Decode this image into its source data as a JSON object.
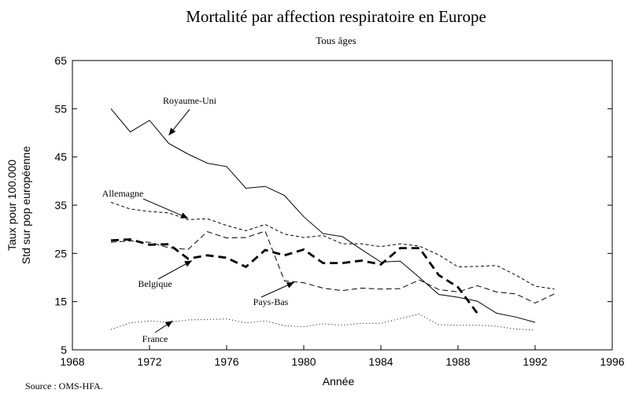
{
  "chart_data": {
    "type": "line",
    "title": "Mortalité par affection respiratoire en Europe",
    "subtitle": "Tous âges",
    "xlabel": "Année",
    "ylabel_line1": "Taux pour 100.000",
    "ylabel_line2": "Std sur pop européenne",
    "source": "Source : OMS-HFA.",
    "xlim": [
      1968,
      1996
    ],
    "ylim": [
      5,
      65
    ],
    "x_ticks": [
      1968,
      1972,
      1976,
      1980,
      1984,
      1988,
      1992,
      1996
    ],
    "y_ticks": [
      5,
      15,
      25,
      35,
      45,
      55,
      65
    ],
    "grid": false,
    "series": [
      {
        "name": "Royaume-Uni",
        "style": "solid",
        "x": [
          1970,
          1971,
          1972,
          1973,
          1974,
          1975,
          1976,
          1977,
          1978,
          1979,
          1980,
          1981,
          1982,
          1983,
          1984,
          1985,
          1986,
          1987,
          1988,
          1989,
          1990,
          1991,
          1992
        ],
        "values": [
          55.0,
          50.2,
          52.6,
          47.8,
          45.6,
          43.7,
          43.0,
          38.5,
          38.9,
          37.0,
          32.6,
          29.1,
          28.5,
          25.8,
          23.2,
          23.4,
          20.0,
          16.5,
          15.9,
          15.1,
          12.6,
          11.8,
          10.7
        ]
      },
      {
        "name": "Allemagne",
        "style": "short-dash",
        "x": [
          1970,
          1971,
          1972,
          1973,
          1974,
          1975,
          1976,
          1977,
          1978,
          1979,
          1980,
          1981,
          1982,
          1983,
          1984,
          1985,
          1986,
          1987,
          1988,
          1989,
          1990,
          1991,
          1992,
          1993
        ],
        "values": [
          35.6,
          34.2,
          33.7,
          33.4,
          32.0,
          32.2,
          30.8,
          29.7,
          31.0,
          29.0,
          28.3,
          28.7,
          27.0,
          27.0,
          26.4,
          27.0,
          26.5,
          24.7,
          22.2,
          22.3,
          22.5,
          20.5,
          18.2,
          17.6
        ]
      },
      {
        "name": "Belgique",
        "style": "bold-dash",
        "x": [
          1970,
          1971,
          1972,
          1973,
          1974,
          1975,
          1976,
          1977,
          1978,
          1979,
          1980,
          1981,
          1982,
          1983,
          1984,
          1985,
          1986,
          1987,
          1988,
          1989
        ],
        "values": [
          27.7,
          27.9,
          26.8,
          26.9,
          23.9,
          24.6,
          24.1,
          22.2,
          25.7,
          24.6,
          25.8,
          23.0,
          23.0,
          23.5,
          22.7,
          26.1,
          26.1,
          20.5,
          18.0,
          12.6
        ]
      },
      {
        "name": "Pays-Bas",
        "style": "long-dash",
        "x": [
          1970,
          1971,
          1972,
          1973,
          1974,
          1975,
          1976,
          1977,
          1978,
          1979,
          1980,
          1981,
          1982,
          1983,
          1984,
          1985,
          1986,
          1987,
          1988,
          1989,
          1990,
          1991,
          1992,
          1993
        ],
        "values": [
          27.3,
          27.6,
          27.3,
          26.2,
          25.8,
          29.5,
          28.2,
          28.3,
          29.6,
          19.3,
          18.9,
          17.8,
          17.3,
          17.8,
          17.6,
          17.7,
          19.5,
          17.5,
          17.0,
          18.3,
          17.0,
          16.6,
          14.7,
          16.6
        ]
      },
      {
        "name": "France",
        "style": "dotted",
        "x": [
          1970,
          1971,
          1972,
          1973,
          1974,
          1975,
          1976,
          1977,
          1978,
          1979,
          1980,
          1981,
          1982,
          1983,
          1984,
          1985,
          1986,
          1987,
          1988,
          1989,
          1990,
          1991,
          1992
        ],
        "values": [
          9.2,
          10.6,
          11.0,
          10.7,
          11.2,
          11.3,
          11.4,
          10.6,
          11.0,
          10.0,
          9.8,
          10.4,
          10.1,
          10.5,
          10.5,
          11.5,
          12.4,
          10.2,
          10.1,
          10.1,
          9.9,
          9.3,
          9.1
        ]
      }
    ],
    "annotations": [
      {
        "label": "Royaume-Uni",
        "target": [
          1973.0,
          49.5
        ]
      },
      {
        "label": "Allemagne",
        "target": [
          1974.0,
          32.3
        ]
      },
      {
        "label": "Belgique",
        "target": [
          1974.2,
          23.5
        ]
      },
      {
        "label": "Pays-Bas",
        "target": [
          1979.5,
          19.0
        ]
      },
      {
        "label": "France",
        "target": [
          1973.2,
          11.0
        ]
      }
    ]
  }
}
